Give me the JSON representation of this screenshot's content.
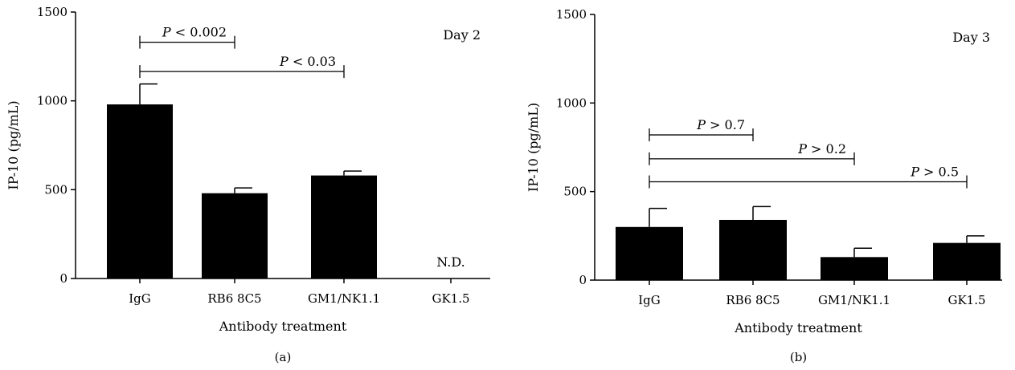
{
  "chart_data": [
    {
      "type": "bar",
      "panel_label": "(a)",
      "corner_note": "Day 2",
      "xlabel": "Antibody treatment",
      "ylabel": "IP-10 (pg/mL)",
      "ylim": [
        0,
        1500
      ],
      "yticks": [
        0,
        500,
        1000,
        1500
      ],
      "categories": [
        "IgG",
        "RB6 8C5",
        "GM1/NK1.1",
        "GK1.5"
      ],
      "values": [
        980,
        480,
        580,
        null
      ],
      "errors": [
        115,
        30,
        25,
        null
      ],
      "bar_notes": [
        "",
        "",
        "",
        "N.D."
      ],
      "comparisons": [
        {
          "from": 0,
          "to": 1,
          "italic": "P",
          "rest": " < 0.002",
          "level": 1330
        },
        {
          "from": 0,
          "to": 2,
          "italic": "P",
          "rest": " < 0.03",
          "level": 1165
        }
      ]
    },
    {
      "type": "bar",
      "panel_label": "(b)",
      "corner_note": "Day 3",
      "xlabel": "Antibody treatment",
      "ylabel": "IP-10 (pg/mL)",
      "ylim": [
        0,
        1500
      ],
      "yticks": [
        0,
        500,
        1000,
        1500
      ],
      "categories": [
        "IgG",
        "RB6 8C5",
        "GM1/NK1.1",
        "GK1.5"
      ],
      "values": [
        300,
        340,
        130,
        210
      ],
      "errors": [
        105,
        75,
        50,
        40
      ],
      "bar_notes": [
        "",
        "",
        "",
        ""
      ],
      "comparisons": [
        {
          "from": 0,
          "to": 1,
          "italic": "P",
          "rest": " > 0.7",
          "level": 820
        },
        {
          "from": 0,
          "to": 2,
          "italic": "P",
          "rest": " > 0.2",
          "level": 685
        },
        {
          "from": 0,
          "to": 3,
          "italic": "P",
          "rest": " > 0.5",
          "level": 555
        }
      ]
    }
  ]
}
